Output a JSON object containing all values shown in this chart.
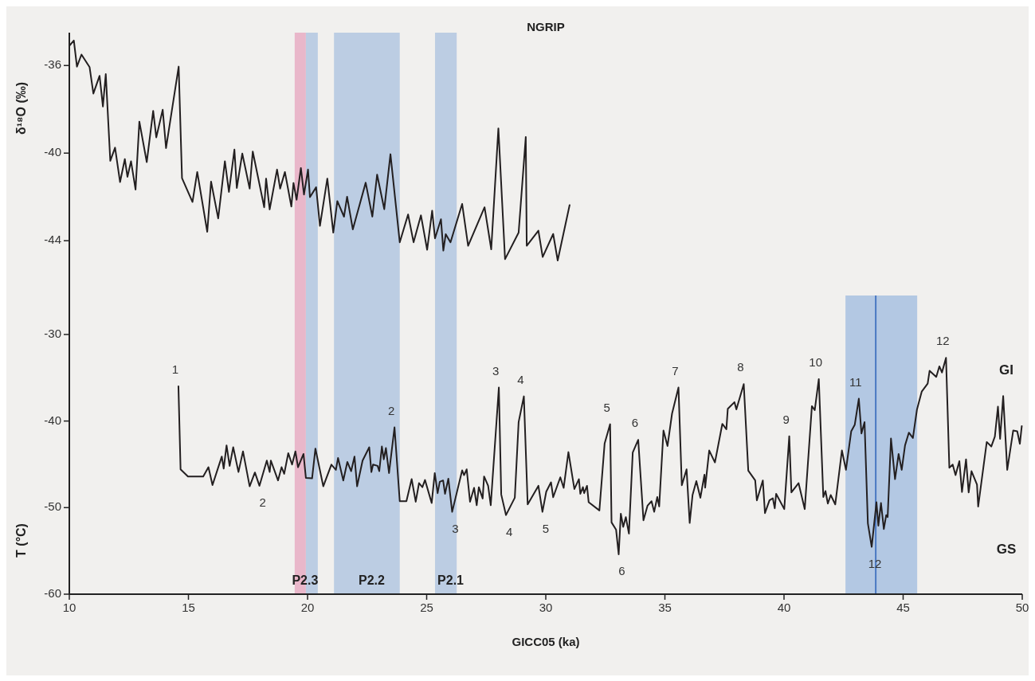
{
  "chart_data": [
    {
      "type": "line",
      "title": "NGRIP",
      "ylabel": "δ¹⁸O (‰)",
      "xlim": [
        10,
        50
      ],
      "ylim": [
        -46.5,
        -34.5
      ],
      "yticks": [
        -36,
        -40,
        -44
      ],
      "tick_labels": "y",
      "series": [
        {
          "color": "#231f20",
          "x": [
            10.0,
            10.19,
            10.32,
            10.51,
            10.85,
            11.01,
            11.27,
            11.41,
            11.53,
            11.72,
            11.92,
            12.13,
            12.33,
            12.44,
            12.59,
            12.78,
            12.94,
            13.25,
            13.52,
            13.65,
            13.92,
            14.06,
            14.59,
            14.73,
            15.17,
            15.37,
            15.79,
            15.95,
            16.25,
            16.53,
            16.7,
            16.93,
            17.03,
            17.26,
            17.57,
            17.7,
            18.18,
            18.26,
            18.41,
            18.72,
            18.85,
            19.05,
            19.32,
            19.41,
            19.54,
            19.72,
            19.85,
            20.02,
            20.1,
            20.36,
            20.52,
            20.83,
            21.08,
            21.25,
            21.53,
            21.66,
            21.9,
            22.44,
            22.72,
            22.92,
            23.22,
            23.48,
            23.87,
            24.22,
            24.45,
            24.76,
            25.02,
            25.23,
            25.35,
            25.6,
            25.7,
            25.8,
            26.0,
            26.49,
            26.74,
            27.43,
            27.71,
            28.01,
            28.29,
            28.86,
            29.16,
            29.2,
            29.69,
            29.87,
            30.31,
            30.5,
            31.0
          ],
          "values": [
            -35.1,
            -34.86,
            -36.05,
            -35.5,
            -36.07,
            -37.28,
            -36.47,
            -37.87,
            -36.39,
            -40.35,
            -39.75,
            -41.32,
            -40.27,
            -41.08,
            -40.37,
            -41.66,
            -38.56,
            -40.41,
            -38.07,
            -39.28,
            -38.02,
            -39.77,
            -36.05,
            -41.14,
            -42.23,
            -40.86,
            -43.59,
            -41.3,
            -42.98,
            -40.37,
            -41.77,
            -39.84,
            -41.59,
            -40.02,
            -41.62,
            -39.93,
            -42.47,
            -41.16,
            -42.57,
            -40.75,
            -41.62,
            -40.86,
            -42.44,
            -41.36,
            -42.13,
            -40.68,
            -41.89,
            -40.75,
            -42.01,
            -41.56,
            -43.32,
            -41.16,
            -43.63,
            -42.19,
            -42.9,
            -41.99,
            -43.48,
            -41.35,
            -42.9,
            -40.98,
            -42.56,
            -40.05,
            -44.07,
            -42.8,
            -44.07,
            -42.84,
            -44.41,
            -42.63,
            -43.89,
            -43.02,
            -44.45,
            -43.7,
            -44.07,
            -42.32,
            -44.23,
            -42.47,
            -44.39,
            -38.87,
            -44.84,
            -43.63,
            -39.26,
            -44.23,
            -43.54,
            -44.74,
            -43.69,
            -44.9,
            -42.37
          ]
        }
      ],
      "bands": [
        {
          "axis": "x",
          "from": 19.46,
          "to": 19.93,
          "color": "#e9b7ca"
        },
        {
          "axis": "x",
          "from": 19.93,
          "to": 20.43,
          "color": "#bccde3"
        },
        {
          "axis": "x",
          "from": 21.11,
          "to": 23.87,
          "color": "#bccde3"
        },
        {
          "axis": "x",
          "from": 25.35,
          "to": 26.26,
          "color": "#bccde3"
        }
      ]
    },
    {
      "type": "line",
      "xlabel": "GICC05 (ka)",
      "ylabel": "T (°C)",
      "xlim": [
        10,
        50
      ],
      "xticks": [
        10,
        15,
        20,
        25,
        30,
        35,
        40,
        45,
        50
      ],
      "ylim": [
        -60,
        -25.5
      ],
      "yticks": [
        -30,
        -40,
        -50,
        -60
      ],
      "series": [
        {
          "color": "#231f20",
          "x": [
            14.58,
            14.67,
            14.98,
            15.62,
            15.84,
            16.01,
            16.4,
            16.48,
            16.6,
            16.73,
            16.88,
            17.1,
            17.29,
            17.57,
            17.79,
            17.98,
            18.29,
            18.41,
            18.46,
            18.76,
            18.91,
            19.02,
            19.19,
            19.35,
            19.49,
            19.6,
            19.83,
            19.93,
            20.19,
            20.33,
            20.66,
            21.0,
            21.19,
            21.28,
            21.5,
            21.67,
            21.83,
            21.97,
            22.08,
            22.31,
            22.59,
            22.68,
            22.75,
            22.94,
            23.01,
            23.12,
            23.2,
            23.29,
            23.42,
            23.65,
            23.87,
            24.15,
            24.37,
            24.54,
            24.68,
            24.82,
            24.93,
            25.21,
            25.34,
            25.46,
            25.55,
            25.69,
            25.77,
            25.91,
            26.07,
            26.49,
            26.57,
            26.68,
            26.82,
            26.99,
            27.1,
            27.19,
            27.35,
            27.41,
            27.58,
            27.69,
            28.03,
            28.13,
            28.33,
            28.7,
            28.86,
            29.08,
            29.24,
            29.69,
            29.86,
            30.02,
            30.22,
            30.31,
            30.61,
            30.75,
            30.95,
            31.2,
            31.39,
            31.45,
            31.56,
            31.61,
            31.73,
            31.8,
            32.25,
            32.47,
            32.7,
            32.76,
            32.95,
            33.06,
            33.15,
            33.25,
            33.36,
            33.49,
            33.65,
            33.88,
            34.1,
            34.27,
            34.44,
            34.55,
            34.68,
            34.76,
            34.94,
            35.11,
            35.3,
            35.57,
            35.71,
            35.91,
            36.04,
            36.16,
            36.32,
            36.49,
            36.66,
            36.69,
            36.86,
            37.1,
            37.41,
            37.58,
            37.64,
            37.92,
            38.0,
            38.31,
            38.5,
            38.79,
            38.86,
            39.11,
            39.2,
            39.39,
            39.53,
            39.61,
            39.67,
            40.01,
            40.22,
            40.31,
            40.61,
            40.87,
            41.17,
            41.29,
            41.46,
            41.65,
            41.74,
            41.84,
            41.96,
            42.15,
            42.43,
            42.6,
            42.82,
            42.97,
            43.14,
            43.25,
            43.38,
            43.52,
            43.68,
            43.88,
            43.96,
            44.07,
            44.19,
            44.29,
            44.35,
            44.49,
            44.66,
            44.81,
            44.94,
            45.08,
            45.24,
            45.41,
            45.58,
            45.78,
            46.03,
            46.11,
            46.39,
            46.52,
            46.63,
            46.8,
            46.94,
            47.08,
            47.2,
            47.36,
            47.47,
            47.64,
            47.75,
            47.87,
            48.1,
            48.15,
            48.51,
            48.7,
            48.85,
            48.98,
            49.07,
            49.2,
            49.37,
            49.62,
            49.79,
            49.9,
            49.98
          ],
          "values": [
            -35.98,
            -45.58,
            -46.4,
            -46.4,
            -45.33,
            -47.39,
            -44.1,
            -45.49,
            -42.81,
            -45.18,
            -43.03,
            -45.89,
            -43.5,
            -47.54,
            -45.94,
            -47.48,
            -44.57,
            -45.89,
            -44.57,
            -46.86,
            -45.33,
            -46.1,
            -43.71,
            -45.03,
            -43.5,
            -45.33,
            -43.8,
            -46.56,
            -46.62,
            -43.18,
            -47.54,
            -45.03,
            -45.64,
            -44.26,
            -46.86,
            -44.72,
            -45.79,
            -44.1,
            -47.54,
            -44.57,
            -43.03,
            -45.89,
            -45.03,
            -45.18,
            -45.79,
            -42.94,
            -44.42,
            -43.12,
            -46.01,
            -40.73,
            -49.26,
            -49.26,
            -46.71,
            -49.32,
            -47.17,
            -47.64,
            -46.81,
            -49.47,
            -46.01,
            -48.33,
            -47.02,
            -46.86,
            -48.4,
            -46.65,
            -50.49,
            -45.7,
            -46.25,
            -45.58,
            -49.32,
            -47.72,
            -49.72,
            -47.64,
            -48.95,
            -46.4,
            -47.48,
            -49.72,
            -36.13,
            -48.49,
            -50.86,
            -48.86,
            -40.12,
            -37.15,
            -49.63,
            -47.48,
            -50.49,
            -48.16,
            -47.08,
            -48.8,
            -46.5,
            -47.72,
            -43.59,
            -47.85,
            -46.71,
            -48.4,
            -47.64,
            -48.33,
            -47.48,
            -49.38,
            -50.33,
            -42.58,
            -40.37,
            -51.71,
            -52.54,
            -55.39,
            -50.7,
            -52.23,
            -51.1,
            -53.0,
            -43.64,
            -42.17,
            -51.46,
            -49.78,
            -49.26,
            -50.49,
            -48.77,
            -49.87,
            -41.1,
            -42.88,
            -39.14,
            -36.13,
            -47.42,
            -45.58,
            -51.77,
            -48.55,
            -46.93,
            -48.86,
            -46.19,
            -47.69,
            -43.4,
            -44.78,
            -40.33,
            -40.95,
            -38.58,
            -37.82,
            -38.65,
            -35.73,
            -45.73,
            -46.86,
            -49.16,
            -46.86,
            -50.63,
            -49.16,
            -48.92,
            -50.08,
            -48.4,
            -50.17,
            -41.75,
            -48.24,
            -47.17,
            -50.17,
            -38.28,
            -38.74,
            -35.15,
            -48.77,
            -48.09,
            -49.53,
            -48.55,
            -49.63,
            -43.4,
            -45.64,
            -41.19,
            -40.42,
            -37.42,
            -41.44,
            -40.12,
            -51.83,
            -54.53,
            -49.38,
            -52.08,
            -49.47,
            -52.47,
            -50.86,
            -51.1,
            -42.02,
            -46.71,
            -43.8,
            -45.64,
            -42.81,
            -41.34,
            -41.96,
            -38.68,
            -36.6,
            -35.68,
            -34.2,
            -34.9,
            -33.68,
            -34.39,
            -32.7,
            -45.39,
            -45.03,
            -46.25,
            -44.63,
            -48.19,
            -44.42,
            -48.25,
            -45.79,
            -47.33,
            -49.87,
            -42.42,
            -42.94,
            -41.8,
            -38.34,
            -42.05,
            -37.11,
            -45.64,
            -41.1,
            -41.19,
            -42.63,
            -40.58
          ]
        }
      ],
      "bands": [
        {
          "axis": "x",
          "from": 19.46,
          "to": 19.93,
          "color": "#e9b7ca",
          "label": "P2.3"
        },
        {
          "axis": "x",
          "from": 19.93,
          "to": 20.43,
          "color": "#bccde3"
        },
        {
          "axis": "x",
          "from": 21.11,
          "to": 23.87,
          "color": "#bccde3",
          "label": "P2.2"
        },
        {
          "axis": "x",
          "from": 25.35,
          "to": 26.26,
          "color": "#bccde3",
          "label": "P2.1"
        },
        {
          "axis": "x",
          "from": 42.58,
          "to": 45.59,
          "color": "#b3c8e3"
        }
      ],
      "ref_lines": [
        {
          "axis": "x",
          "value": 43.85,
          "color": "#4a78c2"
        }
      ],
      "annotations": [
        {
          "text": "1",
          "x": 14.58,
          "y": -35.98
        },
        {
          "text": "2",
          "x": 23.65,
          "y": -40.73
        },
        {
          "text": "3",
          "x": 28.03,
          "y": -36.13
        },
        {
          "text": "4",
          "x": 29.08,
          "y": -37.15
        },
        {
          "text": "5",
          "x": 32.7,
          "y": -40.37
        },
        {
          "text": "6",
          "x": 33.88,
          "y": -42.17
        },
        {
          "text": "7",
          "x": 35.57,
          "y": -36.13
        },
        {
          "text": "8",
          "x": 38.31,
          "y": -35.73
        },
        {
          "text": "9",
          "x": 40.22,
          "y": -41.75
        },
        {
          "text": "10",
          "x": 41.46,
          "y": -35.15
        },
        {
          "text": "11",
          "x": 43.14,
          "y": -37.42
        },
        {
          "text": "12",
          "x": 46.8,
          "y": -32.7
        },
        {
          "text": "2",
          "x": 17.98,
          "y": -47.48
        },
        {
          "text": "3",
          "x": 26.07,
          "y": -50.49
        },
        {
          "text": "4",
          "x": 28.33,
          "y": -50.86
        },
        {
          "text": "5",
          "x": 29.86,
          "y": -50.49
        },
        {
          "text": "6",
          "x": 33.06,
          "y": -55.39
        },
        {
          "text": "12",
          "x": 43.68,
          "y": -54.53
        },
        "GI",
        "GS"
      ]
    }
  ]
}
